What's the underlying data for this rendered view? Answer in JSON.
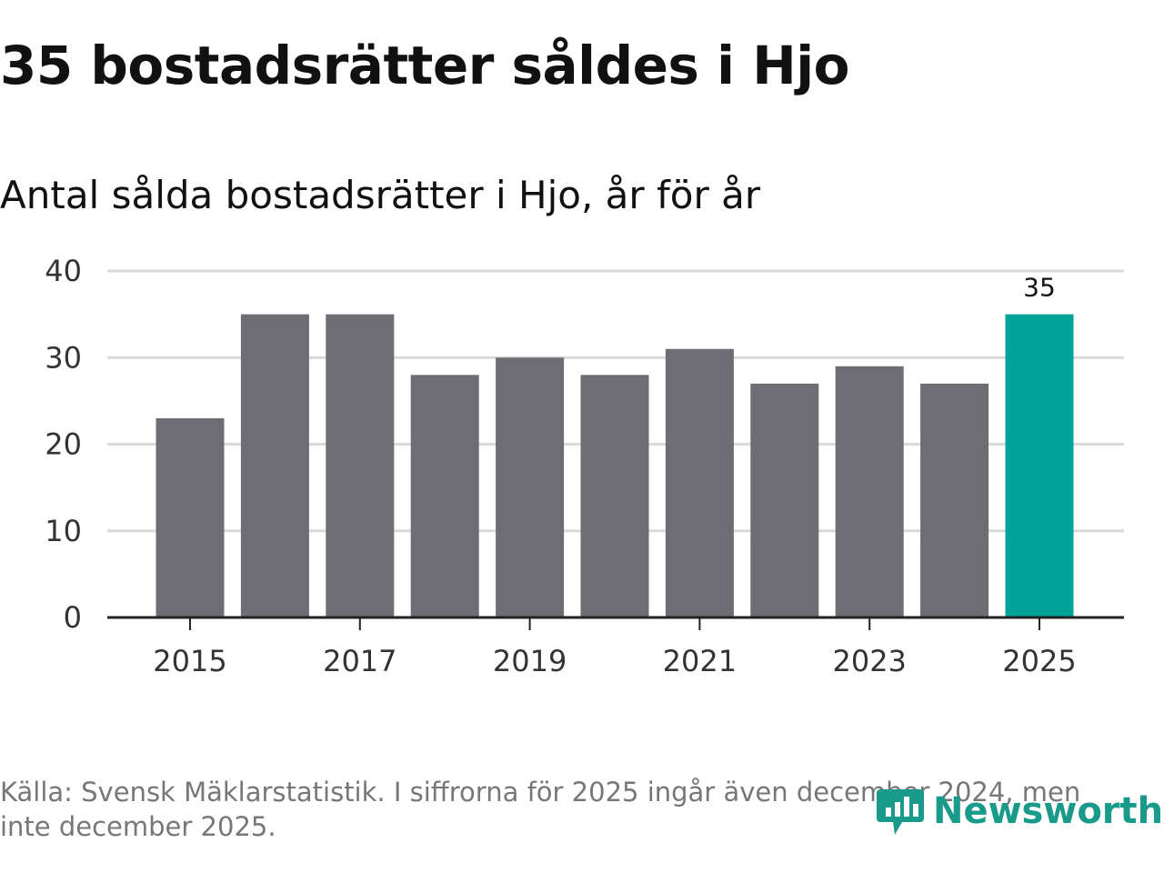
{
  "title": "35 bostadsrätter såldes i Hjo",
  "subtitle": "Antal sålda bostadsrätter i Hjo, år för år",
  "source": "Källa: Svensk Mäklarstatistik. I siffrorna för 2025 ingår även december 2024, men inte december 2025.",
  "logo": {
    "text": "Newsworthy",
    "icon": "newsworthy-logo-icon",
    "color": "#1a9a8a"
  },
  "colors": {
    "bar": "#6e6d74",
    "highlight": "#00a398",
    "grid": "#d9d9d9",
    "axis": "#222222"
  },
  "chart_data": {
    "type": "bar",
    "title": "Antal sålda bostadsrätter i Hjo, år för år",
    "xlabel": "",
    "ylabel": "",
    "categories": [
      "2015",
      "2016",
      "2017",
      "2018",
      "2019",
      "2020",
      "2021",
      "2022",
      "2023",
      "2024",
      "2025"
    ],
    "values": [
      23,
      35,
      35,
      28,
      30,
      28,
      31,
      27,
      29,
      27,
      35
    ],
    "ylim": [
      0,
      40
    ],
    "yticks": [
      0,
      10,
      20,
      30,
      40
    ],
    "xtick_labels": [
      "2015",
      "2017",
      "2019",
      "2021",
      "2023",
      "2025"
    ],
    "highlight_index": 10,
    "data_labels": [
      {
        "index": 10,
        "text": "35"
      }
    ],
    "grid": true
  }
}
